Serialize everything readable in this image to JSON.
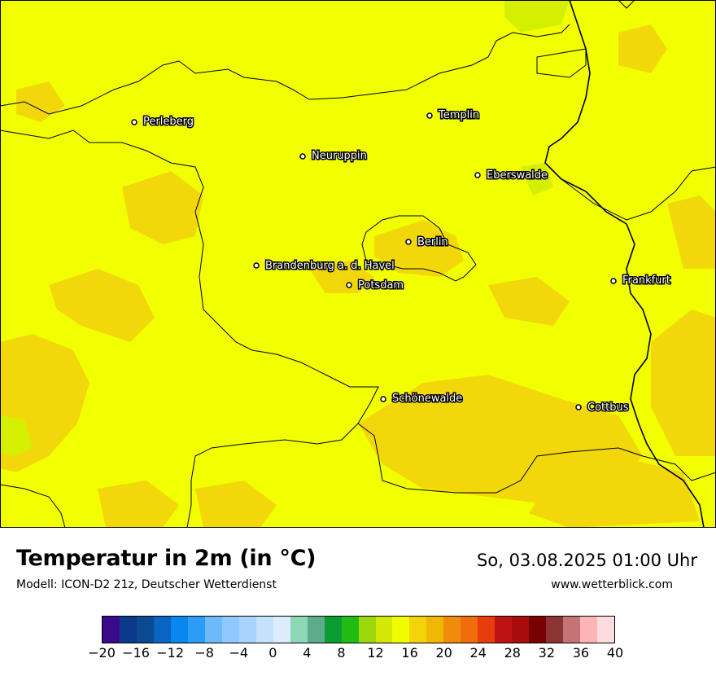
{
  "map": {
    "background_color": "#f1ff00",
    "warm_patch_color": "#f2d80a",
    "border_color": "#000000",
    "cities": [
      {
        "name": "Perleberg"
      },
      {
        "name": "Neuruppin"
      },
      {
        "name": "Templin"
      },
      {
        "name": "Eberswalde"
      },
      {
        "name": "Berlin"
      },
      {
        "name": "Brandenburg a. d. Havel"
      },
      {
        "name": "Potsdam"
      },
      {
        "name": "Frankfurt"
      },
      {
        "name": "Schönewalde"
      },
      {
        "name": "Cottbus"
      }
    ]
  },
  "footer": {
    "title": "Temperatur in 2m (in °C)",
    "subtitle": "Modell: ICON-D2 21z, Deutscher Wetterdienst",
    "datetime": "So, 03.08.2025 01:00 Uhr",
    "site": "www.wetterblick.com"
  },
  "legend": {
    "colors": [
      "#3a0a8c",
      "#0c3a8a",
      "#0b4a90",
      "#0a64c2",
      "#0a86f0",
      "#2c9cf8",
      "#6cbafc",
      "#8ec8fc",
      "#a8d4fc",
      "#c4e2fc",
      "#dcecfc",
      "#8cd8b4",
      "#5cac8c",
      "#0c9c34",
      "#20bc14",
      "#9cd80c",
      "#d4e804",
      "#f2fc00",
      "#f2d408",
      "#f0b804",
      "#f08c0c",
      "#f06c0c",
      "#e83c0c",
      "#bc1414",
      "#a80c0c",
      "#780000",
      "#8c3434",
      "#c47474",
      "#fcb4b4",
      "#fcdcdc"
    ],
    "ticks": [
      "−20",
      "−16",
      "−12",
      "−8",
      "−4",
      "0",
      "4",
      "8",
      "12",
      "16",
      "20",
      "24",
      "28",
      "32",
      "36",
      "40"
    ]
  }
}
